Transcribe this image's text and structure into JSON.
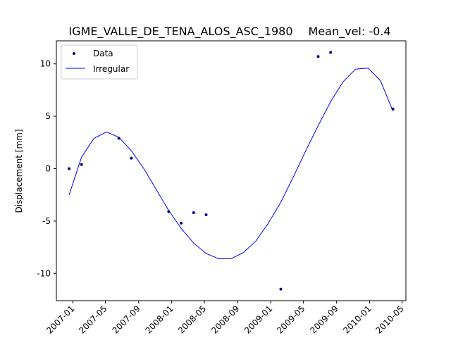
{
  "chart_data": {
    "type": "line",
    "title": "IGME_VALLE_DE_TENA_ALOS_ASC_1980",
    "subtitle": "Mean_vel: -0.4",
    "xlabel": "",
    "ylabel": "Displacement [mm]",
    "xlim": [
      "2006-11-01",
      "2010-05-15"
    ],
    "ylim": [
      -12.6,
      12.2
    ],
    "grid": false,
    "legend_position": "upper-left",
    "x_ticks": [
      "2007-01",
      "2007-05",
      "2007-09",
      "2008-01",
      "2008-05",
      "2008-09",
      "2009-01",
      "2009-05",
      "2009-09",
      "2010-01",
      "2010-05"
    ],
    "y_ticks": [
      10,
      5,
      0,
      -5,
      -10
    ],
    "series": [
      {
        "name": "Data",
        "style": "points",
        "color": "#00007f",
        "x": [
          "2006-12-18",
          "2007-02-02",
          "2007-06-20",
          "2007-08-05",
          "2007-12-21",
          "2008-02-05",
          "2008-03-22",
          "2008-05-07",
          "2009-02-07",
          "2009-06-25",
          "2009-08-10",
          "2010-03-28"
        ],
        "y": [
          0.0,
          0.4,
          2.9,
          1.0,
          -4.1,
          -5.2,
          -4.2,
          -4.4,
          -11.5,
          10.7,
          11.1,
          5.7
        ]
      },
      {
        "name": "Irregular",
        "style": "line",
        "color": "#0000ff",
        "x": [
          "2006-12-18",
          "2007-02-02",
          "2007-03-20",
          "2007-05-05",
          "2007-06-20",
          "2007-08-05",
          "2007-09-20",
          "2007-11-05",
          "2007-12-21",
          "2008-02-05",
          "2008-03-22",
          "2008-05-07",
          "2008-06-22",
          "2008-08-07",
          "2008-09-22",
          "2008-11-07",
          "2008-12-23",
          "2009-02-07",
          "2009-03-25",
          "2009-05-10",
          "2009-06-25",
          "2009-08-10",
          "2009-09-25",
          "2009-11-10",
          "2009-12-26",
          "2010-02-10",
          "2010-03-28"
        ],
        "y": [
          -2.5,
          1.1,
          2.9,
          3.5,
          3.0,
          1.7,
          0.0,
          -2.0,
          -4.0,
          -5.7,
          -7.1,
          -8.1,
          -8.6,
          -8.6,
          -8.0,
          -6.9,
          -5.2,
          -3.2,
          -0.8,
          1.7,
          4.1,
          6.4,
          8.3,
          9.5,
          9.6,
          8.4,
          5.5
        ]
      }
    ]
  }
}
